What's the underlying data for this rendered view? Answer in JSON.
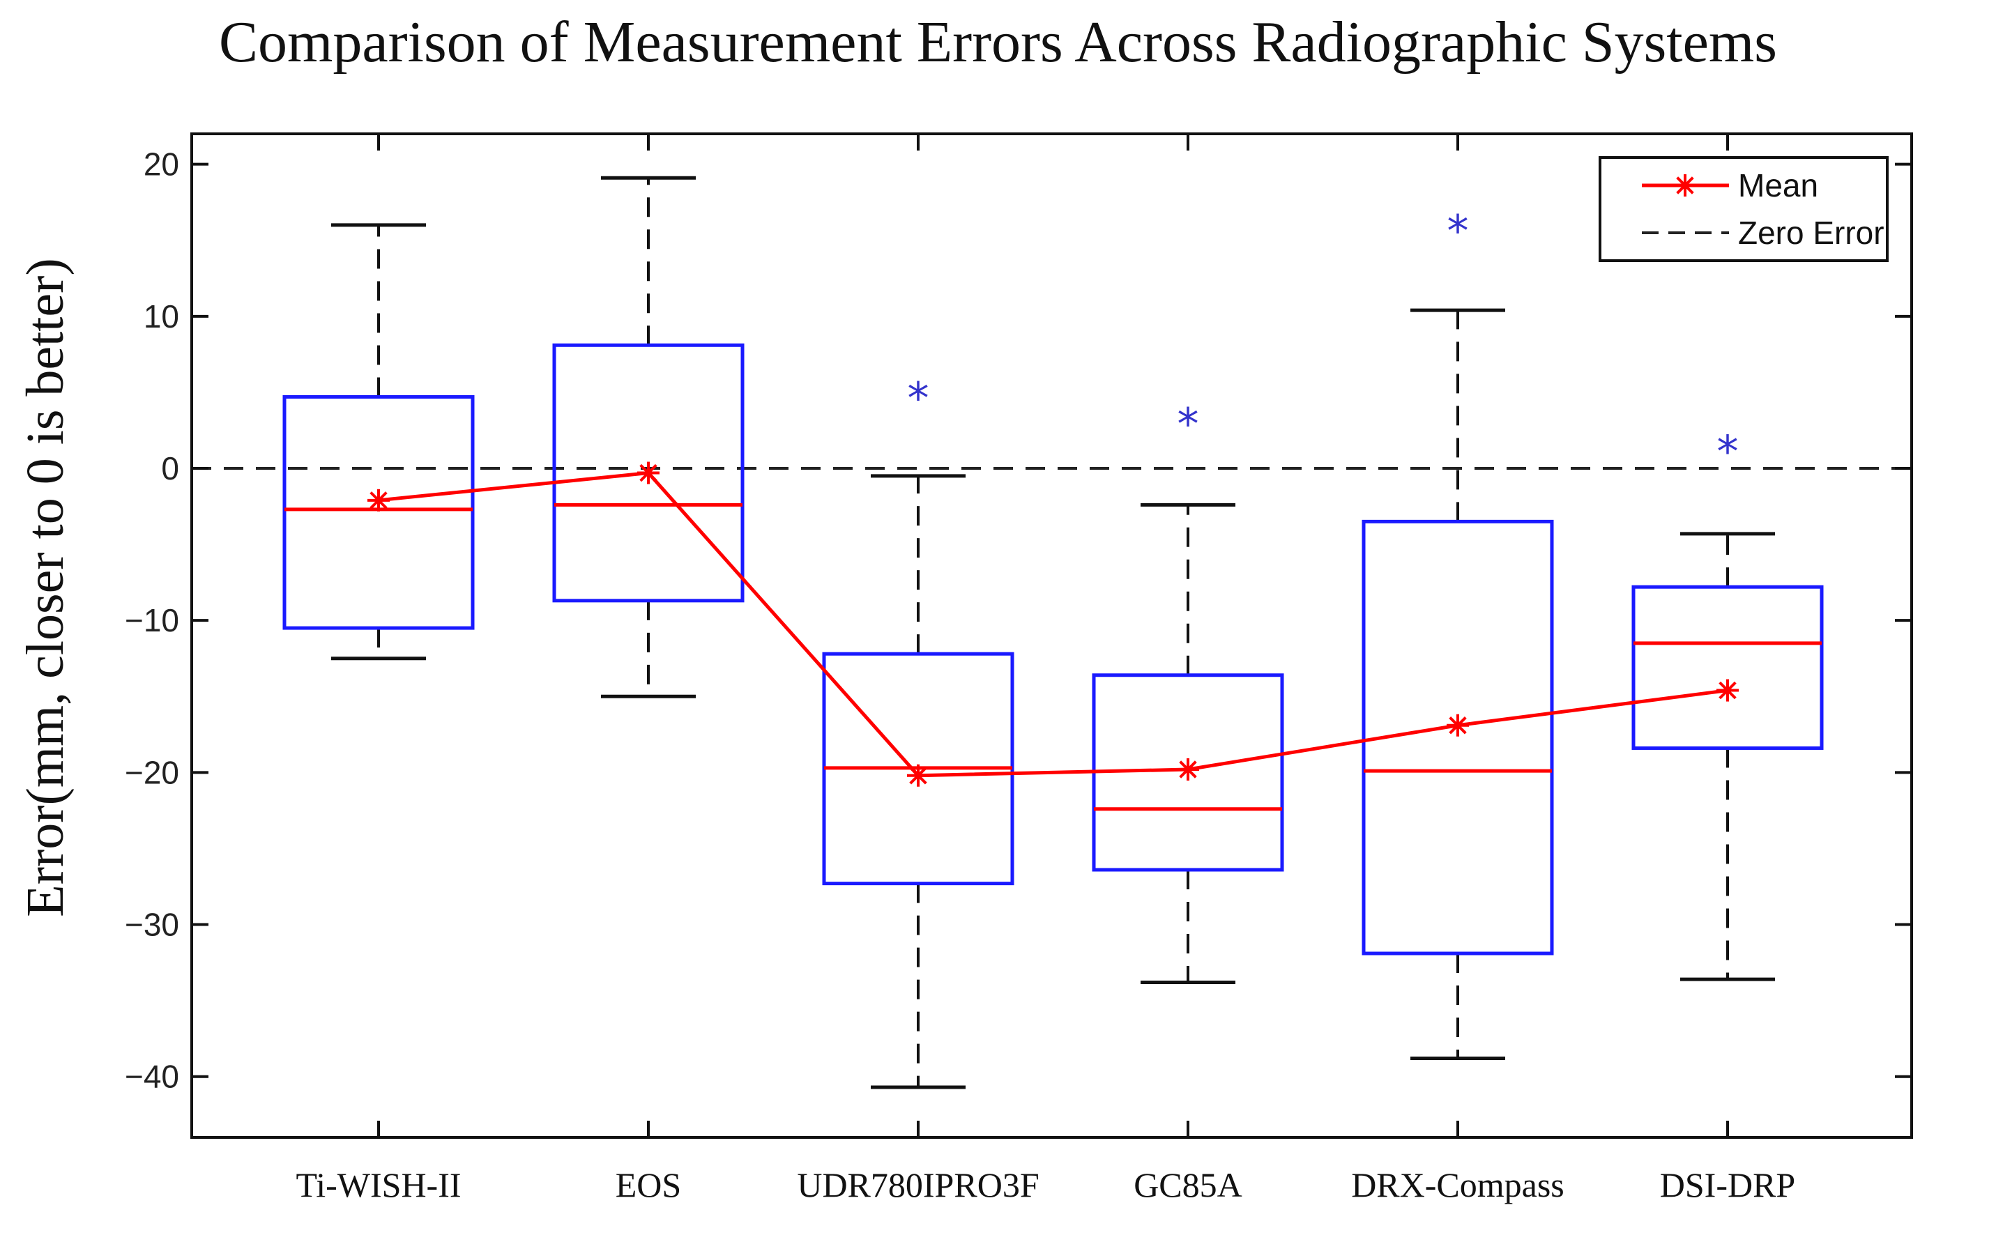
{
  "chart_data": {
    "type": "box",
    "title": "Comparison of Measurement Errors Across Radiographic Systems",
    "xlabel": "",
    "ylabel": "Error(mm, closer to 0 is better)",
    "ylim": [
      -44,
      22
    ],
    "yticks": [
      20,
      10,
      0,
      -10,
      -20,
      -30,
      -40
    ],
    "ytick_labels": [
      "20",
      "10",
      "0",
      "−10",
      "−20",
      "−30",
      "−40"
    ],
    "categories": [
      "Ti-WISH-II",
      "EOS",
      "UDR780IPRO3F",
      "GC85A",
      "DRX-Compass",
      "DSI-DRP"
    ],
    "boxes": [
      {
        "category": "Ti-WISH-II",
        "whisker_low": -12.5,
        "q1": -10.5,
        "median": -2.7,
        "q3": 4.7,
        "whisker_high": 16.0,
        "outliers": []
      },
      {
        "category": "EOS",
        "whisker_low": -15.0,
        "q1": -8.7,
        "median": -2.4,
        "q3": 8.1,
        "whisker_high": 19.1,
        "outliers": []
      },
      {
        "category": "UDR780IPRO3F",
        "whisker_low": -40.7,
        "q1": -27.3,
        "median": -19.7,
        "q3": -12.2,
        "whisker_high": -0.5,
        "outliers": [
          5.0
        ]
      },
      {
        "category": "GC85A",
        "whisker_low": -33.8,
        "q1": -26.4,
        "median": -22.4,
        "q3": -13.6,
        "whisker_high": -2.4,
        "outliers": [
          3.3
        ]
      },
      {
        "category": "DRX-Compass",
        "whisker_low": -38.8,
        "q1": -31.9,
        "median": -19.9,
        "q3": -3.5,
        "whisker_high": 10.4,
        "outliers": [
          16.0
        ]
      },
      {
        "category": "DSI-DRP",
        "whisker_low": -33.6,
        "q1": -18.4,
        "median": -11.5,
        "q3": -7.8,
        "whisker_high": -4.3,
        "outliers": [
          1.5
        ]
      }
    ],
    "series": [
      {
        "name": "Mean",
        "values": [
          -2.1,
          -0.3,
          -20.2,
          -19.8,
          -16.9,
          -14.6
        ],
        "color": "#ff0000",
        "marker": "asterisk"
      }
    ],
    "reference_lines": [
      {
        "name": "Zero Error",
        "y": 0,
        "style": "dashed",
        "color": "#222222"
      }
    ],
    "legend": {
      "position": "top-right",
      "entries": [
        "Mean",
        "Zero Error"
      ]
    },
    "colors": {
      "box": "#1a1aff",
      "median": "#ff0000",
      "whisker": "#111111",
      "outlier": "#3333cc",
      "mean": "#ff0000"
    },
    "grid": false
  }
}
